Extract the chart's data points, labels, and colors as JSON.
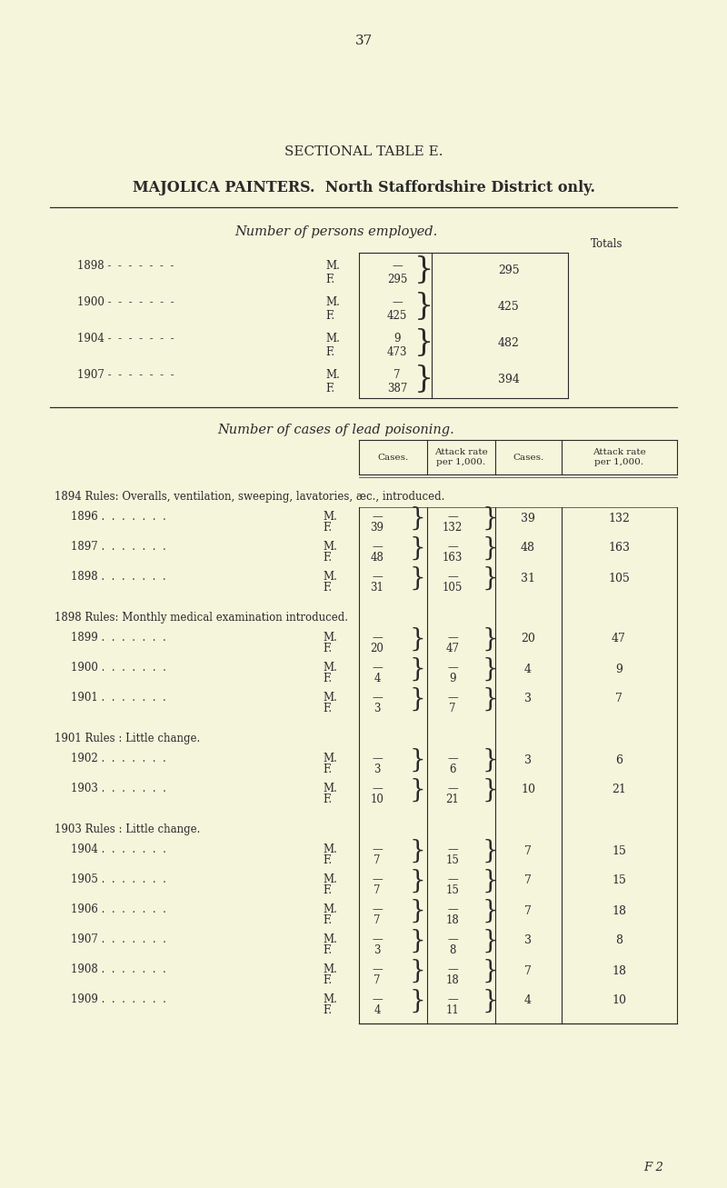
{
  "bg_color": "#F5F5DC",
  "text_color": "#2a2a2a",
  "page_number": "37",
  "section_title": "SECTIONAL TABLE E.",
  "main_title": "MAJOLICA PAINTERS.  North Staffordshire District only.",
  "table1_header": "Number of persons employed.",
  "table1_totals_label": "Totals",
  "table1_rows": [
    {
      "year": "1898",
      "M_val": "—",
      "F_val": "295",
      "total": "295"
    },
    {
      "year": "1900",
      "M_val": "—",
      "F_val": "425",
      "total": "425"
    },
    {
      "year": "1904",
      "M_val": "9",
      "F_val": "473",
      "total": "482"
    },
    {
      "year": "1907",
      "M_val": "7",
      "F_val": "387",
      "total": "394"
    }
  ],
  "table2_header": "Number of cases of lead poisoning.",
  "table2_col_headers": [
    "Cases.",
    "Attack rate\nper 1,000.",
    "Cases.",
    "Attack rate\nper 1,000."
  ],
  "rule1_text": "1894 Rules: Overalls, ventilation, sweeping, lavatories, æc., introduced.",
  "rule2_text": "1898 Rules: Monthly medical examination introduced.",
  "rule3_text": "1901 Rules : Little change.",
  "rule4_text": "1903 Rules : Little change.",
  "table2_rows": [
    {
      "year": "1896",
      "section": 1,
      "M_cases": "—",
      "M_rate": "—",
      "F_cases": "39",
      "F_rate": "132",
      "tot_cases": "39",
      "tot_rate": "132"
    },
    {
      "year": "1897",
      "section": 1,
      "M_cases": "—",
      "M_rate": "—",
      "F_cases": "48",
      "F_rate": "163",
      "tot_cases": "48",
      "tot_rate": "163"
    },
    {
      "year": "1898",
      "section": 1,
      "M_cases": "—",
      "M_rate": "—",
      "F_cases": "31",
      "F_rate": "105",
      "tot_cases": "31",
      "tot_rate": "105"
    },
    {
      "year": "1899",
      "section": 2,
      "M_cases": "—",
      "M_rate": "—",
      "F_cases": "20",
      "F_rate": "47",
      "tot_cases": "20",
      "tot_rate": "47"
    },
    {
      "year": "1900",
      "section": 2,
      "M_cases": "—",
      "M_rate": "—",
      "F_cases": "4",
      "F_rate": "9",
      "tot_cases": "4",
      "tot_rate": "9"
    },
    {
      "year": "1901",
      "section": 2,
      "M_cases": "—",
      "M_rate": "—",
      "F_cases": "3",
      "F_rate": "7",
      "tot_cases": "3",
      "tot_rate": "7"
    },
    {
      "year": "1902",
      "section": 3,
      "M_cases": "—",
      "M_rate": "—",
      "F_cases": "3",
      "F_rate": "6",
      "tot_cases": "3",
      "tot_rate": "6"
    },
    {
      "year": "1903",
      "section": 3,
      "M_cases": "—",
      "M_rate": "—",
      "F_cases": "10",
      "F_rate": "21",
      "tot_cases": "10",
      "tot_rate": "21"
    },
    {
      "year": "1904",
      "section": 4,
      "M_cases": "—",
      "M_rate": "—",
      "F_cases": "7",
      "F_rate": "15",
      "tot_cases": "7",
      "tot_rate": "15"
    },
    {
      "year": "1905",
      "section": 4,
      "M_cases": "—",
      "M_rate": "—",
      "F_cases": "7",
      "F_rate": "15",
      "tot_cases": "7",
      "tot_rate": "15"
    },
    {
      "year": "1906",
      "section": 4,
      "M_cases": "—",
      "M_rate": "—",
      "F_cases": "7",
      "F_rate": "18",
      "tot_cases": "7",
      "tot_rate": "18"
    },
    {
      "year": "1907",
      "section": 4,
      "M_cases": "—",
      "M_rate": "—",
      "F_cases": "3",
      "F_rate": "8",
      "tot_cases": "3",
      "tot_rate": "8"
    },
    {
      "year": "1908",
      "section": 4,
      "M_cases": "—",
      "M_rate": "—",
      "F_cases": "7",
      "F_rate": "18",
      "tot_cases": "7",
      "tot_rate": "18"
    },
    {
      "year": "1909",
      "section": 4,
      "M_cases": "—",
      "M_rate": "—",
      "F_cases": "4",
      "F_rate": "11",
      "tot_cases": "4",
      "tot_rate": "10"
    }
  ],
  "footer": "F 2"
}
